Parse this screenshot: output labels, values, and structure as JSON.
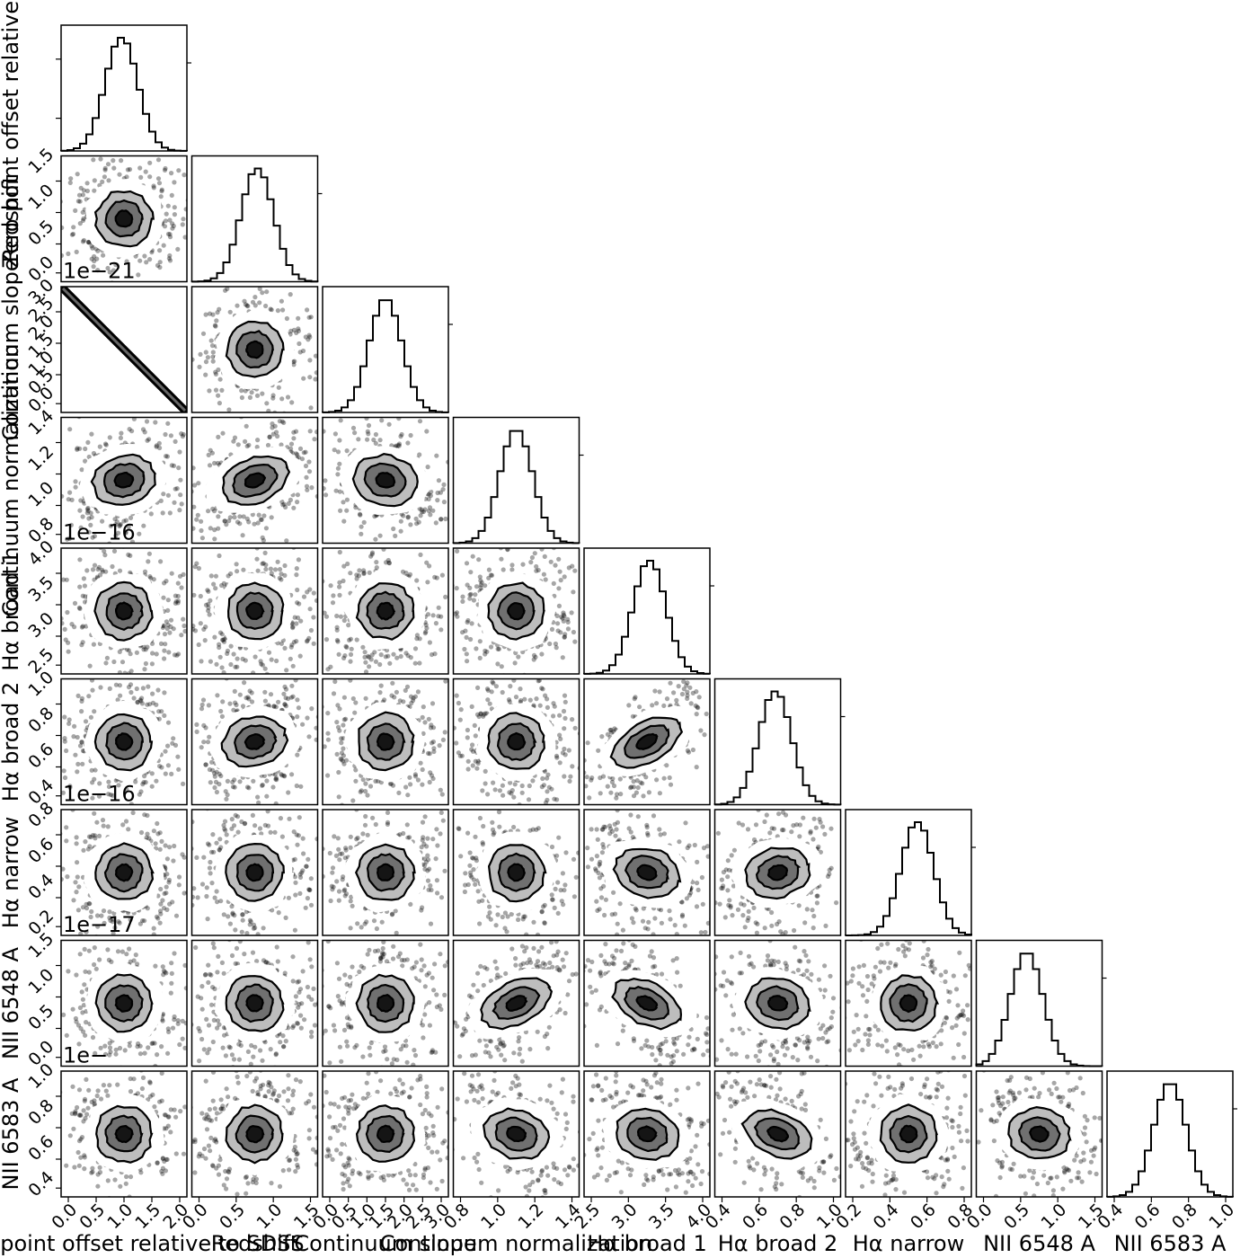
{
  "chart_data": {
    "type": "corner",
    "title": "",
    "parameters": [
      {
        "label": "Zero point offset relative to SDSS",
        "ticks": [
          "0.0",
          "0.5",
          "1.0",
          "1.5",
          "2.0"
        ],
        "offset_text": ""
      },
      {
        "label": "Redshift",
        "ticks": [
          "0.0",
          "0.5",
          "1.0",
          "1.5"
        ],
        "offset_text": "1e−21"
      },
      {
        "label": "Continuum slope",
        "ticks": [
          "0.0",
          "0.5",
          "1.0",
          "1.5",
          "2.0",
          "2.5",
          "3.0"
        ],
        "offset_text": ""
      },
      {
        "label": "Continuum normalization",
        "ticks": [
          "0.8",
          "1.0",
          "1.2",
          "1.4"
        ],
        "offset_text": "1e−16"
      },
      {
        "label": "Hα broad 1",
        "ticks": [
          "2.5",
          "3.0",
          "3.5",
          "4.0"
        ],
        "offset_text": ""
      },
      {
        "label": "Hα broad 2",
        "ticks": [
          "0.4",
          "0.6",
          "0.8",
          "1.0"
        ],
        "offset_text": "1e−16"
      },
      {
        "label": "Hα narrow",
        "ticks": [
          "0.2",
          "0.4",
          "0.6",
          "0.8"
        ],
        "offset_text": "1e−17"
      },
      {
        "label": "NII 6548 A",
        "ticks": [
          "0.0",
          "0.5",
          "1.0",
          "1.5"
        ],
        "offset_text": "1e−"
      },
      {
        "label": "NII 6583 A",
        "ticks": [
          "0.4",
          "0.6",
          "0.8",
          "1.0"
        ],
        "offset_text": ""
      }
    ],
    "pair_correlations": [
      {
        "row": 2,
        "col": 0,
        "rho": -0.999
      },
      {
        "row": 3,
        "col": 0,
        "rho": 0.25
      },
      {
        "row": 3,
        "col": 1,
        "rho": 0.45
      },
      {
        "row": 3,
        "col": 2,
        "rho": -0.25
      },
      {
        "row": 5,
        "col": 1,
        "rho": 0.25
      },
      {
        "row": 5,
        "col": 4,
        "rho": 0.65
      },
      {
        "row": 6,
        "col": 4,
        "rho": -0.3
      },
      {
        "row": 6,
        "col": 5,
        "rho": 0.3
      },
      {
        "row": 7,
        "col": 3,
        "rho": 0.55
      },
      {
        "row": 7,
        "col": 4,
        "rho": -0.55
      },
      {
        "row": 7,
        "col": 5,
        "rho": -0.25
      },
      {
        "row": 8,
        "col": 3,
        "rho": -0.3
      },
      {
        "row": 8,
        "col": 4,
        "rho": -0.25
      },
      {
        "row": 8,
        "col": 5,
        "rho": -0.5
      },
      {
        "row": 8,
        "col": 7,
        "rho": -0.2
      }
    ],
    "histogram_modes": [
      0.48,
      0.52,
      0.5,
      0.5,
      0.52,
      0.48,
      0.57,
      0.4,
      0.5
    ],
    "grid": false,
    "legend": "none"
  }
}
